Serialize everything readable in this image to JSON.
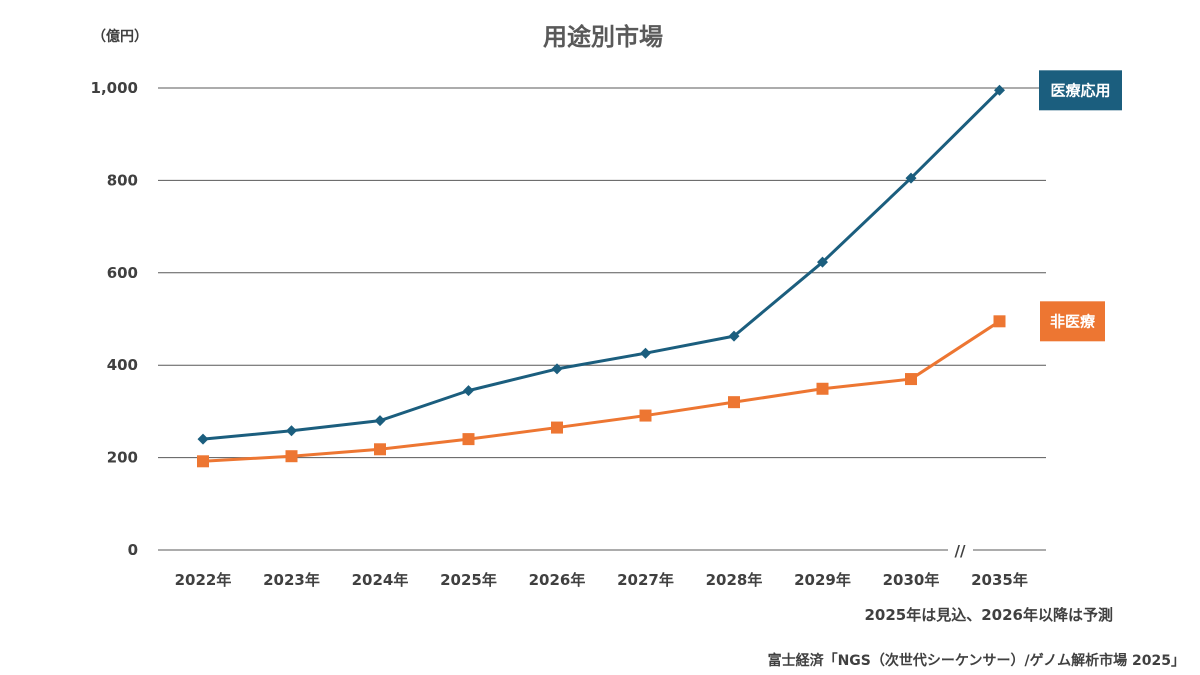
{
  "chart_data": {
    "type": "line",
    "title": "用途別市場",
    "y_unit": "（億円）",
    "categories": [
      "2022年",
      "2023年",
      "2024年",
      "2025年",
      "2026年",
      "2027年",
      "2028年",
      "2029年",
      "2030年",
      "2035年"
    ],
    "ylim": [
      0,
      1000
    ],
    "yticks": [
      "0",
      "200",
      "400",
      "600",
      "800",
      "1,000"
    ],
    "ytick_values": [
      0,
      200,
      400,
      600,
      800,
      1000
    ],
    "axis_break_mark": "//",
    "grid": true,
    "series": [
      {
        "name": "医療応用",
        "color": "#1b5e7e",
        "marker": "diamond",
        "values": [
          240,
          258,
          280,
          345,
          392,
          426,
          463,
          623,
          805,
          995
        ]
      },
      {
        "name": "非医療",
        "color": "#ed7632",
        "marker": "square",
        "values": [
          192,
          203,
          218,
          240,
          265,
          291,
          320,
          349,
          370,
          495
        ]
      }
    ],
    "note": "2025年は見込、2026年以降は予測",
    "source": "富士経済「NGS（次世代シーケンサー）/ゲノム解析市場 2025」"
  }
}
